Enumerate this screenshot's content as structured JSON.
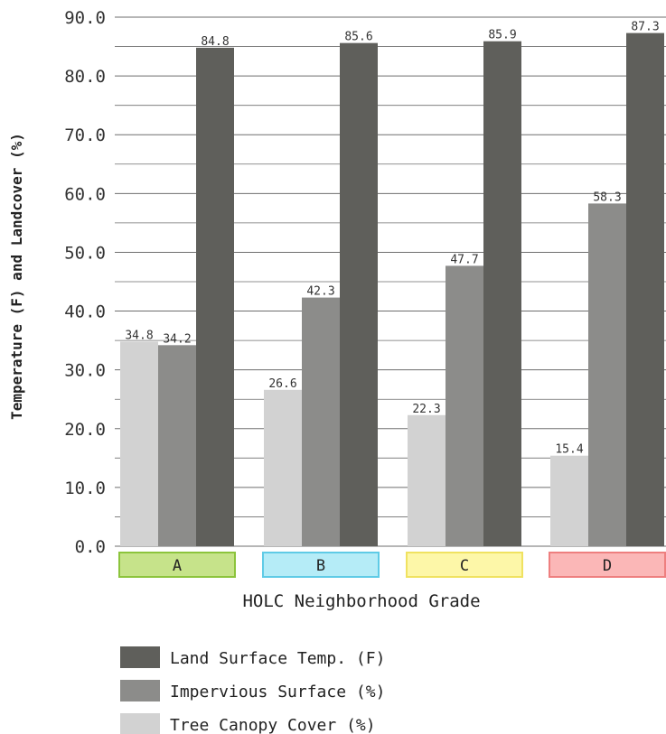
{
  "chart_data": {
    "type": "bar",
    "categories": [
      "A",
      "B",
      "C",
      "D"
    ],
    "category_colors": [
      {
        "fill": "#c6e38a",
        "stroke": "#8cc43c"
      },
      {
        "fill": "#b5ecf7",
        "stroke": "#5fcbe6"
      },
      {
        "fill": "#fdf7a8",
        "stroke": "#f0e260"
      },
      {
        "fill": "#fbb7b7",
        "stroke": "#ee7f7f"
      }
    ],
    "series": [
      {
        "name": "Tree Canopy Cover (%)",
        "color": "#d2d2d2",
        "values": [
          34.8,
          26.6,
          22.3,
          15.4
        ]
      },
      {
        "name": "Impervious Surface (%)",
        "color": "#8c8c8a",
        "values": [
          34.2,
          42.3,
          47.7,
          58.3
        ]
      },
      {
        "name": "Land Surface Temp. (F)",
        "color": "#5f5f5b",
        "values": [
          84.8,
          85.6,
          85.9,
          87.3
        ]
      }
    ],
    "legend_order": [
      2,
      1,
      0
    ],
    "xlabel": "HOLC Neighborhood Grade",
    "ylabel": "Temperature (F) and Landcover (%)",
    "ylim": [
      0,
      90
    ],
    "yticks": [
      "0.0",
      "10.0",
      "20.0",
      "30.0",
      "40.0",
      "50.0",
      "60.0",
      "70.0",
      "80.0",
      "90.0"
    ],
    "grid": true,
    "legend_position": "bottom"
  }
}
